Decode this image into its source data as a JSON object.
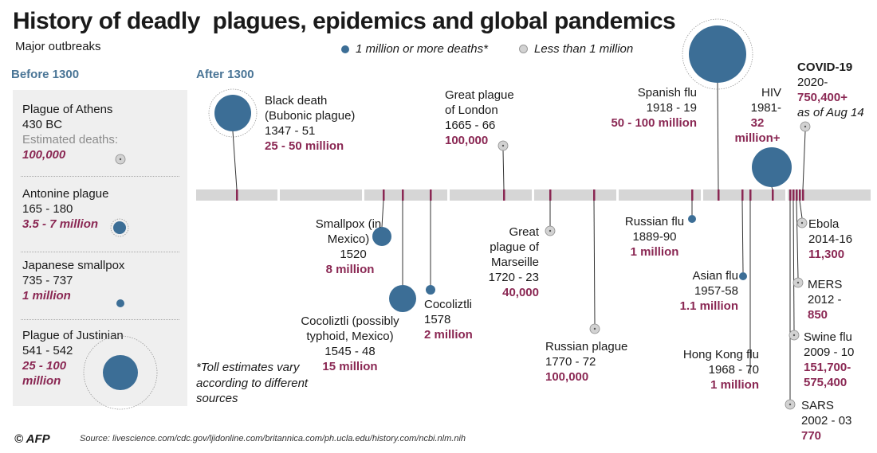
{
  "title": "History of deadly  plagues, epidemics and global pandemics",
  "subtitle": "Major outbreaks",
  "sections": {
    "before": "Before 1300",
    "after": "After 1300"
  },
  "legend": {
    "major": "1 million or more deaths*",
    "minor": "Less than 1 million"
  },
  "colors": {
    "major": "#3c6e96",
    "minor": "#d2d2d2",
    "toll": "#8a2753",
    "section": "#4a7596",
    "timeline": "#d6d6d6",
    "tick": "#8a2753"
  },
  "footnote": "*Toll estimates vary\naccording to different\nsources",
  "source": "Source: livescience.com/cdc.gov/ljidonline.com/britannica.com/ph.ucla.edu/history.com/ncbi.nlm.nih",
  "credit": "© AFP",
  "chart_data": {
    "type": "scatter",
    "title": "History of deadly  plagues, epidemics and global pandemics",
    "encoding": "marker area = death toll",
    "before_1300": [
      {
        "name": "Plague of Athens",
        "years": "430 BC",
        "deaths_label": "Estimated deaths:",
        "deaths": "100,000",
        "category": "minor"
      },
      {
        "name": "Antonine plague",
        "years": "165 - 180",
        "deaths": "3.5 - 7 million",
        "category": "major"
      },
      {
        "name": "Japanese smallpox",
        "years": "735 - 737",
        "deaths": "1 million",
        "category": "major"
      },
      {
        "name": "Plague of Justinian",
        "years": "541 - 542",
        "deaths": "25 - 100 million",
        "category": "major"
      }
    ],
    "after_1300": [
      {
        "name": "Black death (Bubonic plague)",
        "years": "1347 - 51",
        "deaths": "25 - 50 million",
        "start": 1347,
        "category": "major"
      },
      {
        "name": "Smallpox (in Mexico)",
        "years": "1520",
        "deaths": "8 million",
        "start": 1520,
        "category": "major"
      },
      {
        "name": "Cocoliztli (possibly typhoid, Mexico)",
        "years": "1545 - 48",
        "deaths": "15 million",
        "start": 1545,
        "category": "major"
      },
      {
        "name": "Cocoliztli",
        "years": "1578",
        "deaths": "2 million",
        "start": 1578,
        "category": "major"
      },
      {
        "name": "Great plague of London",
        "years": "1665 - 66",
        "deaths": "100,000",
        "start": 1665,
        "category": "minor"
      },
      {
        "name": "Great plague of Marseille",
        "years": "1720 - 23",
        "deaths": "40,000",
        "start": 1720,
        "category": "minor"
      },
      {
        "name": "Russian plague",
        "years": "1770 - 72",
        "deaths": "100,000",
        "start": 1770,
        "category": "minor"
      },
      {
        "name": "Russian flu",
        "years": "1889-90",
        "deaths": "1 million",
        "start": 1889,
        "category": "major"
      },
      {
        "name": "Spanish flu",
        "years": "1918 - 19",
        "deaths": "50 - 100 million",
        "start": 1918,
        "category": "major"
      },
      {
        "name": "Asian flu",
        "years": "1957-58",
        "deaths": "1.1 million",
        "start": 1957,
        "category": "major"
      },
      {
        "name": "Hong Kong flu",
        "years": "1968 - 70",
        "deaths": "1 million",
        "start": 1968,
        "category": "major"
      },
      {
        "name": "HIV",
        "years": "1981-",
        "deaths": "32 million+",
        "start": 1981,
        "category": "major"
      },
      {
        "name": "SARS",
        "years": "2002 - 03",
        "deaths": "770",
        "start": 2002,
        "category": "minor"
      },
      {
        "name": "Swine flu",
        "years": "2009 - 10",
        "deaths": "151,700-575,400",
        "start": 2009,
        "category": "minor"
      },
      {
        "name": "MERS",
        "years": "2012 -",
        "deaths": "850",
        "start": 2012,
        "category": "minor"
      },
      {
        "name": "Ebola",
        "years": "2014-16",
        "deaths": "11,300",
        "start": 2014,
        "category": "minor"
      },
      {
        "name": "COVID-19",
        "years": "2020-",
        "deaths": "750,400+",
        "note": "as of Aug 14",
        "start": 2020,
        "category": "minor"
      }
    ]
  }
}
